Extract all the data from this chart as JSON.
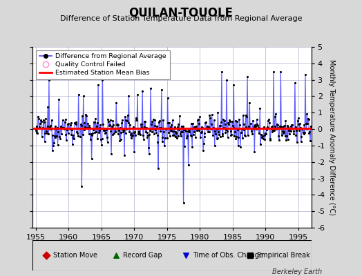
{
  "title": "QUILAN-TOUOLE",
  "subtitle": "Difference of Station Temperature Data from Regional Average",
  "ylabel": "Monthly Temperature Anomaly Difference (°C)",
  "xlabel_years": [
    1955,
    1960,
    1965,
    1970,
    1975,
    1980,
    1985,
    1990,
    1995
  ],
  "xlim": [
    1954.5,
    1997.0
  ],
  "ylim": [
    -6,
    5
  ],
  "yticks": [
    -6,
    -5,
    -4,
    -3,
    -2,
    -1,
    0,
    1,
    2,
    3,
    4,
    5
  ],
  "mean_bias": 0.05,
  "line_color": "#4444ff",
  "marker_color": "#000000",
  "bias_color": "#ff0000",
  "bg_color": "#d8d8d8",
  "plot_bg_color": "#ffffff",
  "grid_color": "#aaaacc",
  "watermark": "Berkeley Earth",
  "random_seed": 12345,
  "bottom_legend_items": [
    {
      "marker": "D",
      "color": "#cc0000",
      "label": "Station Move"
    },
    {
      "marker": "^",
      "color": "#006600",
      "label": "Record Gap"
    },
    {
      "marker": "v",
      "color": "#0000cc",
      "label": "Time of Obs. Change"
    },
    {
      "marker": "s",
      "color": "#000000",
      "label": "Empirical Break"
    }
  ]
}
